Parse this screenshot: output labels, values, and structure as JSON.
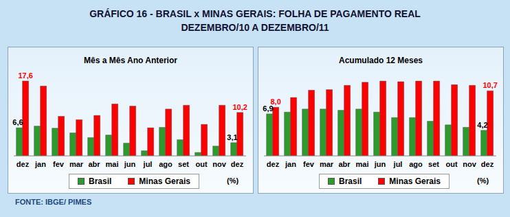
{
  "title": "GRÁFICO 16 - BRASIL x MINAS GERAIS: FOLHA DE PAGAMENTO REAL",
  "subtitle": "DEZEMBRO/10 A DEZEMBRO/11",
  "source": "FONTE: IBGE/ PIMES",
  "chart_data": [
    {
      "type": "bar",
      "title": "Mês a Mês Ano Anterior",
      "y_label": "(%)",
      "categories": [
        "dez",
        "jan",
        "fev",
        "mar",
        "abr",
        "mai",
        "jun",
        "jul",
        "ago",
        "set",
        "out",
        "nov",
        "dez"
      ],
      "ylim": [
        0,
        20
      ],
      "tick_labels": "x",
      "legend": "bottom",
      "series": [
        {
          "name": "Brasil",
          "color": "#2e9a2e",
          "values": [
            6.6,
            7.0,
            6.5,
            5.4,
            4.3,
            4.9,
            3.0,
            1.2,
            6.7,
            3.8,
            0.8,
            2.3,
            3.1
          ],
          "value_labels": [
            "6,6",
            null,
            null,
            null,
            null,
            null,
            null,
            null,
            null,
            null,
            null,
            null,
            "3,1"
          ]
        },
        {
          "name": "Minas Gerais",
          "color": "#ff0000",
          "values": [
            17.6,
            16.4,
            9.3,
            8.5,
            9.5,
            12.2,
            11.7,
            6.6,
            11.0,
            11.9,
            7.4,
            11.9,
            10.2
          ],
          "value_labels": [
            "17,6",
            null,
            null,
            null,
            null,
            null,
            null,
            null,
            null,
            null,
            null,
            null,
            "10,2"
          ]
        }
      ]
    },
    {
      "type": "bar",
      "title": "Acumulado 12 Meses",
      "y_label": "(%)",
      "categories": [
        "dez",
        "jan",
        "fev",
        "mar",
        "abr",
        "mai",
        "jun",
        "jul",
        "ago",
        "set",
        "out",
        "nov",
        "dez"
      ],
      "ylim": [
        0,
        14
      ],
      "tick_labels": "x",
      "legend": "bottom",
      "series": [
        {
          "name": "Brasil",
          "color": "#2e9a2e",
          "values": [
            6.9,
            7.2,
            7.7,
            7.7,
            7.5,
            7.7,
            7.2,
            6.3,
            6.3,
            5.7,
            5.1,
            4.7,
            4.2
          ],
          "value_labels": [
            "6,9",
            null,
            null,
            null,
            null,
            null,
            null,
            null,
            null,
            null,
            null,
            null,
            "4,2"
          ]
        },
        {
          "name": "Minas Gerais",
          "color": "#ff0000",
          "values": [
            8.0,
            9.6,
            10.8,
            10.9,
            11.6,
            12.1,
            12.3,
            12.2,
            12.3,
            12.3,
            11.7,
            11.6,
            10.7
          ],
          "value_labels": [
            "8,0",
            null,
            null,
            null,
            null,
            null,
            null,
            null,
            null,
            null,
            null,
            null,
            "10,7"
          ]
        }
      ]
    }
  ]
}
